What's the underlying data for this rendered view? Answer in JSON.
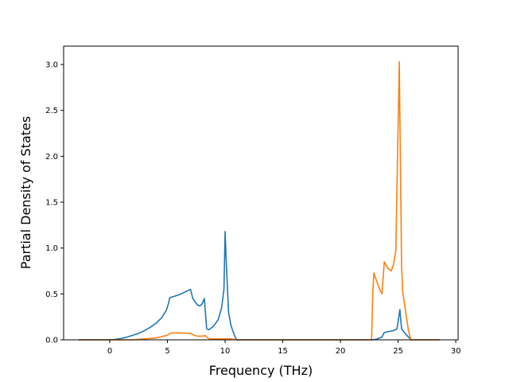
{
  "chart_data": {
    "type": "line",
    "title": "",
    "xlabel": "Frequency (THz)",
    "ylabel": "Partial Density of States",
    "xlim": [
      -4.0,
      30.2
    ],
    "ylim": [
      0.0,
      3.2
    ],
    "x_ticks": [
      0,
      5,
      10,
      15,
      20,
      25,
      30
    ],
    "y_ticks": [
      0.0,
      0.5,
      1.0,
      1.5,
      2.0,
      2.5,
      3.0
    ],
    "x_tick_labels": [
      "0",
      "5",
      "10",
      "15",
      "20",
      "25",
      "30"
    ],
    "y_tick_labels": [
      "0.0",
      "0.5",
      "1.0",
      "1.5",
      "2.0",
      "2.5",
      "3.0"
    ],
    "grid": false,
    "legend": "none",
    "series": [
      {
        "color": "#1f77b4",
        "points": [
          [
            -2.7,
            0.0
          ],
          [
            0.0,
            0.0
          ],
          [
            0.5,
            0.005
          ],
          [
            1.0,
            0.015
          ],
          [
            1.5,
            0.03
          ],
          [
            2.0,
            0.05
          ],
          [
            2.5,
            0.07
          ],
          [
            3.0,
            0.1
          ],
          [
            3.5,
            0.135
          ],
          [
            4.0,
            0.18
          ],
          [
            4.5,
            0.24
          ],
          [
            4.9,
            0.32
          ],
          [
            5.1,
            0.4
          ],
          [
            5.2,
            0.46
          ],
          [
            6.0,
            0.49
          ],
          [
            7.0,
            0.55
          ],
          [
            7.2,
            0.45
          ],
          [
            7.6,
            0.38
          ],
          [
            7.8,
            0.37
          ],
          [
            8.0,
            0.39
          ],
          [
            8.2,
            0.45
          ],
          [
            8.4,
            0.12
          ],
          [
            8.6,
            0.11
          ],
          [
            9.0,
            0.15
          ],
          [
            9.4,
            0.22
          ],
          [
            9.7,
            0.35
          ],
          [
            9.9,
            0.55
          ],
          [
            10.0,
            1.18
          ],
          [
            10.1,
            0.85
          ],
          [
            10.3,
            0.3
          ],
          [
            10.5,
            0.16
          ],
          [
            10.8,
            0.05
          ],
          [
            11.0,
            0.0
          ],
          [
            22.8,
            0.0
          ],
          [
            23.2,
            0.01
          ],
          [
            23.6,
            0.03
          ],
          [
            23.8,
            0.08
          ],
          [
            24.2,
            0.09
          ],
          [
            24.6,
            0.1
          ],
          [
            24.9,
            0.12
          ],
          [
            25.0,
            0.2
          ],
          [
            25.15,
            0.33
          ],
          [
            25.3,
            0.12
          ],
          [
            25.6,
            0.07
          ],
          [
            25.9,
            0.03
          ],
          [
            26.1,
            0.0
          ],
          [
            28.6,
            0.0
          ]
        ]
      },
      {
        "color": "#ff7f0e",
        "points": [
          [
            -2.7,
            0.0
          ],
          [
            2.0,
            0.0
          ],
          [
            3.0,
            0.01
          ],
          [
            4.0,
            0.02
          ],
          [
            5.0,
            0.05
          ],
          [
            5.3,
            0.075
          ],
          [
            6.0,
            0.075
          ],
          [
            7.0,
            0.07
          ],
          [
            7.3,
            0.05
          ],
          [
            7.6,
            0.04
          ],
          [
            8.0,
            0.04
          ],
          [
            8.3,
            0.045
          ],
          [
            8.6,
            0.01
          ],
          [
            9.0,
            0.01
          ],
          [
            10.0,
            0.01
          ],
          [
            10.5,
            0.01
          ],
          [
            11.0,
            0.0
          ],
          [
            22.7,
            0.0
          ],
          [
            22.8,
            0.5
          ],
          [
            22.9,
            0.73
          ],
          [
            23.3,
            0.58
          ],
          [
            23.6,
            0.5
          ],
          [
            23.8,
            0.85
          ],
          [
            24.1,
            0.78
          ],
          [
            24.4,
            0.75
          ],
          [
            24.6,
            0.82
          ],
          [
            24.8,
            0.97
          ],
          [
            25.1,
            3.03
          ],
          [
            25.3,
            0.8
          ],
          [
            25.4,
            0.52
          ],
          [
            25.6,
            0.35
          ],
          [
            25.9,
            0.1
          ],
          [
            26.1,
            0.0
          ],
          [
            28.6,
            0.0
          ]
        ]
      }
    ]
  }
}
